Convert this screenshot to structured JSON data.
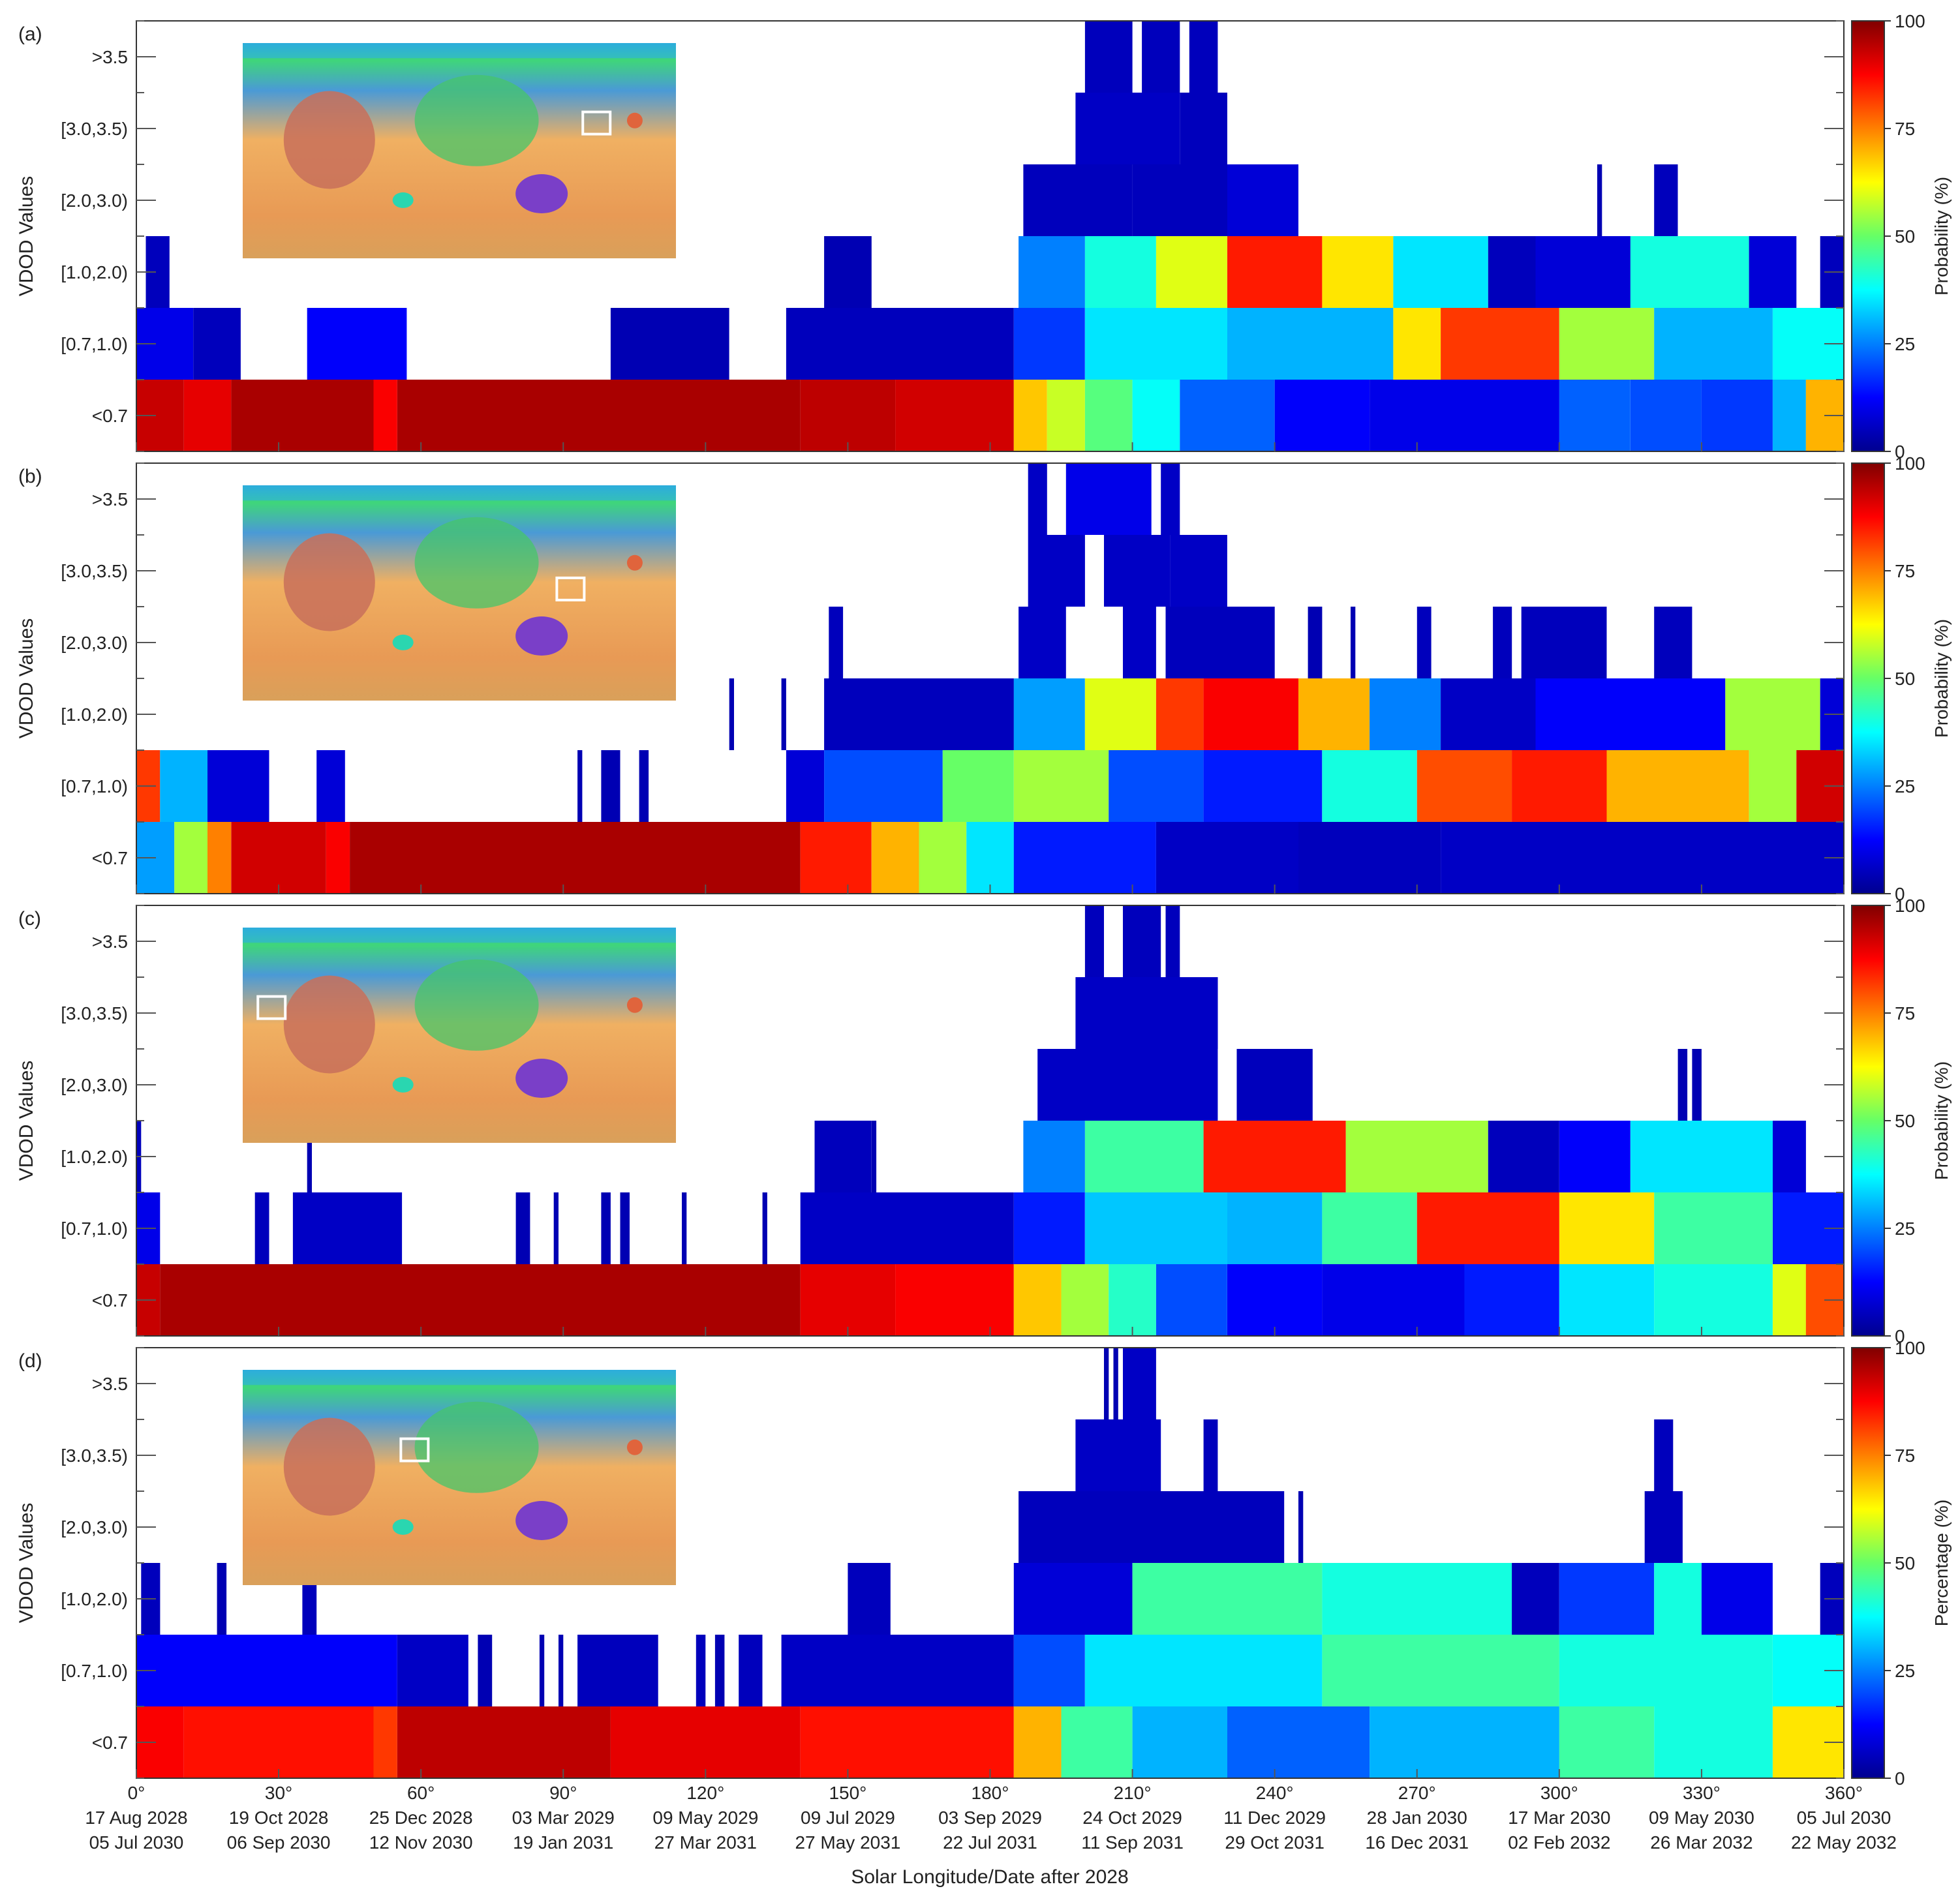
{
  "figure": {
    "xlabel": "Solar Longitude/Date after 2028",
    "x_ticks": [
      {
        "deg": 0,
        "label": "0°",
        "date1": "17 Aug 2028",
        "date2": "05 Jul 2030"
      },
      {
        "deg": 30,
        "label": "30°",
        "date1": "19 Oct 2028",
        "date2": "06 Sep 2030"
      },
      {
        "deg": 60,
        "label": "60°",
        "date1": "25 Dec 2028",
        "date2": "12 Nov 2030"
      },
      {
        "deg": 90,
        "label": "90°",
        "date1": "03 Mar 2029",
        "date2": "19 Jan 2031"
      },
      {
        "deg": 120,
        "label": "120°",
        "date1": "09 May 2029",
        "date2": "27 Mar 2031"
      },
      {
        "deg": 150,
        "label": "150°",
        "date1": "09 Jul 2029",
        "date2": "27 May 2031"
      },
      {
        "deg": 180,
        "label": "180°",
        "date1": "03 Sep 2029",
        "date2": "22 Jul 2031"
      },
      {
        "deg": 210,
        "label": "210°",
        "date1": "24 Oct 2029",
        "date2": "11 Sep 2031"
      },
      {
        "deg": 240,
        "label": "240°",
        "date1": "11 Dec 2029",
        "date2": "29 Oct 2031"
      },
      {
        "deg": 270,
        "label": "270°",
        "date1": "28 Jan 2030",
        "date2": "16 Dec 2031"
      },
      {
        "deg": 300,
        "label": "300°",
        "date1": "17 Mar 2030",
        "date2": "02 Feb 2032"
      },
      {
        "deg": 330,
        "label": "330°",
        "date1": "09 May 2030",
        "date2": "26 Mar 2032"
      },
      {
        "deg": 360,
        "label": "360°",
        "date1": "05 Jul 2030",
        "date2": "22 May 2032"
      }
    ],
    "ylabel": "VDOD Values",
    "y_categories": [
      "<0.7",
      "[0.7,1.0)",
      "[1.0,2.0)",
      "[2.0,3.0)",
      "[3.0,3.5)",
      ">3.5"
    ],
    "colorbar_ticks": [
      "0",
      "25",
      "50",
      "75",
      "100"
    ]
  },
  "chart_data": [
    {
      "type": "heatmap",
      "panel": "(a)",
      "colorbar_label": "Probability (%)",
      "x_range": [
        0,
        360
      ],
      "value_range": [
        0,
        100
      ],
      "rows": {
        "<0.7": [
          [
            0,
            10,
            93
          ],
          [
            10,
            20,
            90
          ],
          [
            20,
            50,
            96
          ],
          [
            50,
            55,
            88
          ],
          [
            55,
            140,
            96
          ],
          [
            140,
            160,
            94
          ],
          [
            160,
            185,
            92
          ],
          [
            185,
            192,
            68
          ],
          [
            192,
            200,
            58
          ],
          [
            200,
            210,
            48
          ],
          [
            210,
            220,
            38
          ],
          [
            220,
            240,
            22
          ],
          [
            240,
            260,
            12
          ],
          [
            260,
            300,
            10
          ],
          [
            300,
            315,
            22
          ],
          [
            315,
            330,
            20
          ],
          [
            330,
            345,
            18
          ],
          [
            345,
            352,
            30
          ],
          [
            352,
            360,
            70
          ]
        ],
        "[0.7,1.0)": [
          [
            0,
            12,
            10
          ],
          [
            12,
            22,
            5
          ],
          [
            36,
            57,
            12
          ],
          [
            100,
            125,
            4
          ],
          [
            137,
            185,
            5
          ],
          [
            185,
            200,
            18
          ],
          [
            200,
            230,
            35
          ],
          [
            230,
            265,
            30
          ],
          [
            265,
            275,
            65
          ],
          [
            275,
            300,
            82
          ],
          [
            300,
            320,
            55
          ],
          [
            320,
            345,
            30
          ],
          [
            345,
            360,
            38
          ]
        ],
        "[1.0,2.0)": [
          [
            2,
            7,
            5
          ],
          [
            145,
            155,
            4
          ],
          [
            186,
            200,
            25
          ],
          [
            200,
            215,
            40
          ],
          [
            215,
            230,
            60
          ],
          [
            230,
            250,
            85
          ],
          [
            250,
            265,
            65
          ],
          [
            265,
            285,
            35
          ],
          [
            285,
            295,
            5
          ],
          [
            295,
            315,
            8
          ],
          [
            315,
            340,
            40
          ],
          [
            340,
            350,
            8
          ],
          [
            355,
            360,
            5
          ]
        ],
        "[2.0,3.0)": [
          [
            187,
            210,
            5
          ],
          [
            210,
            230,
            5
          ],
          [
            230,
            245,
            8
          ],
          [
            308,
            309,
            4
          ],
          [
            320,
            325,
            5
          ]
        ],
        "[3.0,3.5)": [
          [
            198,
            220,
            6
          ],
          [
            220,
            230,
            5
          ]
        ],
        ">3.5": [
          [
            200,
            210,
            5
          ],
          [
            212,
            220,
            5
          ],
          [
            222,
            228,
            5
          ]
        ]
      }
    },
    {
      "type": "heatmap",
      "panel": "(b)",
      "colorbar_label": "Probability (%)",
      "x_range": [
        0,
        360
      ],
      "value_range": [
        0,
        100
      ],
      "rows": {
        "<0.7": [
          [
            0,
            8,
            28
          ],
          [
            8,
            15,
            55
          ],
          [
            15,
            20,
            75
          ],
          [
            20,
            40,
            92
          ],
          [
            40,
            45,
            88
          ],
          [
            45,
            140,
            96
          ],
          [
            140,
            155,
            85
          ],
          [
            155,
            165,
            70
          ],
          [
            165,
            175,
            55
          ],
          [
            175,
            185,
            35
          ],
          [
            185,
            215,
            15
          ],
          [
            215,
            245,
            6
          ],
          [
            245,
            275,
            5
          ],
          [
            275,
            360,
            6
          ]
        ],
        "[0.7,1.0)": [
          [
            0,
            5,
            82
          ],
          [
            5,
            15,
            30
          ],
          [
            15,
            28,
            8
          ],
          [
            38,
            44,
            8
          ],
          [
            93,
            94,
            4
          ],
          [
            98,
            102,
            4
          ],
          [
            106,
            108,
            4
          ],
          [
            137,
            145,
            8
          ],
          [
            145,
            170,
            20
          ],
          [
            170,
            185,
            50
          ],
          [
            185,
            205,
            55
          ],
          [
            205,
            225,
            20
          ],
          [
            225,
            250,
            15
          ],
          [
            250,
            270,
            40
          ],
          [
            270,
            290,
            80
          ],
          [
            290,
            310,
            85
          ],
          [
            310,
            340,
            70
          ],
          [
            340,
            350,
            55
          ],
          [
            350,
            360,
            92
          ]
        ],
        "[1.0,2.0)": [
          [
            125,
            126,
            4
          ],
          [
            136,
            137,
            4
          ],
          [
            145,
            185,
            5
          ],
          [
            185,
            200,
            28
          ],
          [
            200,
            215,
            60
          ],
          [
            215,
            225,
            82
          ],
          [
            225,
            245,
            88
          ],
          [
            245,
            260,
            70
          ],
          [
            260,
            275,
            25
          ],
          [
            275,
            295,
            6
          ],
          [
            295,
            335,
            12
          ],
          [
            335,
            355,
            55
          ],
          [
            355,
            360,
            8
          ]
        ],
        "[2.0,3.0)": [
          [
            146,
            149,
            5
          ],
          [
            186,
            196,
            6
          ],
          [
            208,
            215,
            6
          ],
          [
            217,
            240,
            5
          ],
          [
            247,
            250,
            4
          ],
          [
            256,
            257,
            4
          ],
          [
            270,
            273,
            5
          ],
          [
            286,
            290,
            5
          ],
          [
            292,
            310,
            5
          ],
          [
            320,
            328,
            5
          ]
        ],
        "[3.0,3.5)": [
          [
            188,
            200,
            6
          ],
          [
            204,
            218,
            6
          ],
          [
            218,
            230,
            6
          ]
        ],
        ">3.5": [
          [
            188,
            192,
            6
          ],
          [
            196,
            214,
            10
          ],
          [
            216,
            220,
            6
          ]
        ]
      }
    },
    {
      "type": "heatmap",
      "panel": "(c)",
      "colorbar_label": "Probability (%)",
      "x_range": [
        0,
        360
      ],
      "value_range": [
        0,
        100
      ],
      "rows": {
        "<0.7": [
          [
            0,
            5,
            93
          ],
          [
            5,
            140,
            96
          ],
          [
            140,
            160,
            90
          ],
          [
            160,
            185,
            88
          ],
          [
            185,
            195,
            68
          ],
          [
            195,
            205,
            55
          ],
          [
            205,
            215,
            42
          ],
          [
            215,
            230,
            20
          ],
          [
            230,
            250,
            12
          ],
          [
            250,
            280,
            10
          ],
          [
            280,
            300,
            15
          ],
          [
            300,
            320,
            35
          ],
          [
            320,
            345,
            40
          ],
          [
            345,
            352,
            60
          ],
          [
            352,
            360,
            80
          ]
        ],
        "[0.7,1.0)": [
          [
            0,
            5,
            10
          ],
          [
            25,
            28,
            5
          ],
          [
            33,
            56,
            6
          ],
          [
            80,
            83,
            4
          ],
          [
            88,
            89,
            4
          ],
          [
            98,
            100,
            4
          ],
          [
            102,
            104,
            4
          ],
          [
            115,
            116,
            4
          ],
          [
            132,
            133,
            4
          ],
          [
            140,
            185,
            6
          ],
          [
            185,
            200,
            15
          ],
          [
            200,
            230,
            32
          ],
          [
            230,
            250,
            30
          ],
          [
            250,
            270,
            45
          ],
          [
            270,
            300,
            85
          ],
          [
            300,
            320,
            65
          ],
          [
            320,
            345,
            45
          ],
          [
            345,
            360,
            15
          ]
        ],
        "[1.0,2.0)": [
          [
            0,
            1,
            5
          ],
          [
            36,
            37,
            4
          ],
          [
            143,
            155,
            5
          ],
          [
            155,
            156,
            4
          ],
          [
            187,
            200,
            25
          ],
          [
            200,
            225,
            45
          ],
          [
            225,
            255,
            85
          ],
          [
            255,
            285,
            55
          ],
          [
            285,
            300,
            5
          ],
          [
            300,
            315,
            12
          ],
          [
            315,
            345,
            35
          ],
          [
            345,
            352,
            8
          ]
        ],
        "[2.0,3.0)": [
          [
            190,
            228,
            6
          ],
          [
            232,
            248,
            5
          ],
          [
            325,
            327,
            4
          ],
          [
            328,
            330,
            4
          ]
        ],
        "[3.0,3.5)": [
          [
            198,
            228,
            6
          ]
        ],
        ">3.5": [
          [
            200,
            204,
            5
          ],
          [
            208,
            216,
            5
          ],
          [
            217,
            220,
            5
          ]
        ]
      }
    },
    {
      "type": "heatmap",
      "panel": "(d)",
      "colorbar_label": "Percentage (%)",
      "x_range": [
        0,
        360
      ],
      "value_range": [
        0,
        100
      ],
      "rows": {
        "<0.7": [
          [
            0,
            10,
            88
          ],
          [
            10,
            50,
            86
          ],
          [
            50,
            55,
            82
          ],
          [
            55,
            100,
            94
          ],
          [
            100,
            140,
            90
          ],
          [
            140,
            185,
            86
          ],
          [
            185,
            195,
            70
          ],
          [
            195,
            210,
            45
          ],
          [
            210,
            230,
            30
          ],
          [
            230,
            260,
            22
          ],
          [
            260,
            300,
            30
          ],
          [
            300,
            320,
            45
          ],
          [
            320,
            345,
            40
          ],
          [
            345,
            360,
            65
          ]
        ],
        "[0.7,1.0)": [
          [
            0,
            55,
            12
          ],
          [
            55,
            70,
            6
          ],
          [
            72,
            75,
            4
          ],
          [
            85,
            86,
            4
          ],
          [
            89,
            90,
            4
          ],
          [
            93,
            110,
            5
          ],
          [
            118,
            120,
            5
          ],
          [
            122,
            124,
            4
          ],
          [
            127,
            132,
            5
          ],
          [
            136,
            185,
            6
          ],
          [
            185,
            200,
            20
          ],
          [
            200,
            250,
            35
          ],
          [
            250,
            300,
            45
          ],
          [
            300,
            345,
            40
          ],
          [
            345,
            360,
            38
          ]
        ],
        "[1.0,2.0)": [
          [
            1,
            5,
            5
          ],
          [
            17,
            19,
            4
          ],
          [
            35,
            38,
            5
          ],
          [
            150,
            159,
            5
          ],
          [
            185,
            210,
            8
          ],
          [
            210,
            250,
            45
          ],
          [
            250,
            290,
            40
          ],
          [
            290,
            300,
            5
          ],
          [
            300,
            320,
            18
          ],
          [
            320,
            330,
            40
          ],
          [
            330,
            345,
            10
          ],
          [
            355,
            360,
            5
          ]
        ],
        "[2.0,3.0)": [
          [
            186,
            242,
            5
          ],
          [
            245,
            246,
            4
          ],
          [
            318,
            326,
            5
          ]
        ],
        "[3.0,3.5)": [
          [
            198,
            216,
            6
          ],
          [
            225,
            228,
            5
          ],
          [
            320,
            324,
            5
          ]
        ],
        ">3.5": [
          [
            204,
            205,
            4
          ],
          [
            206,
            207,
            4
          ],
          [
            208,
            215,
            6
          ]
        ]
      }
    }
  ]
}
